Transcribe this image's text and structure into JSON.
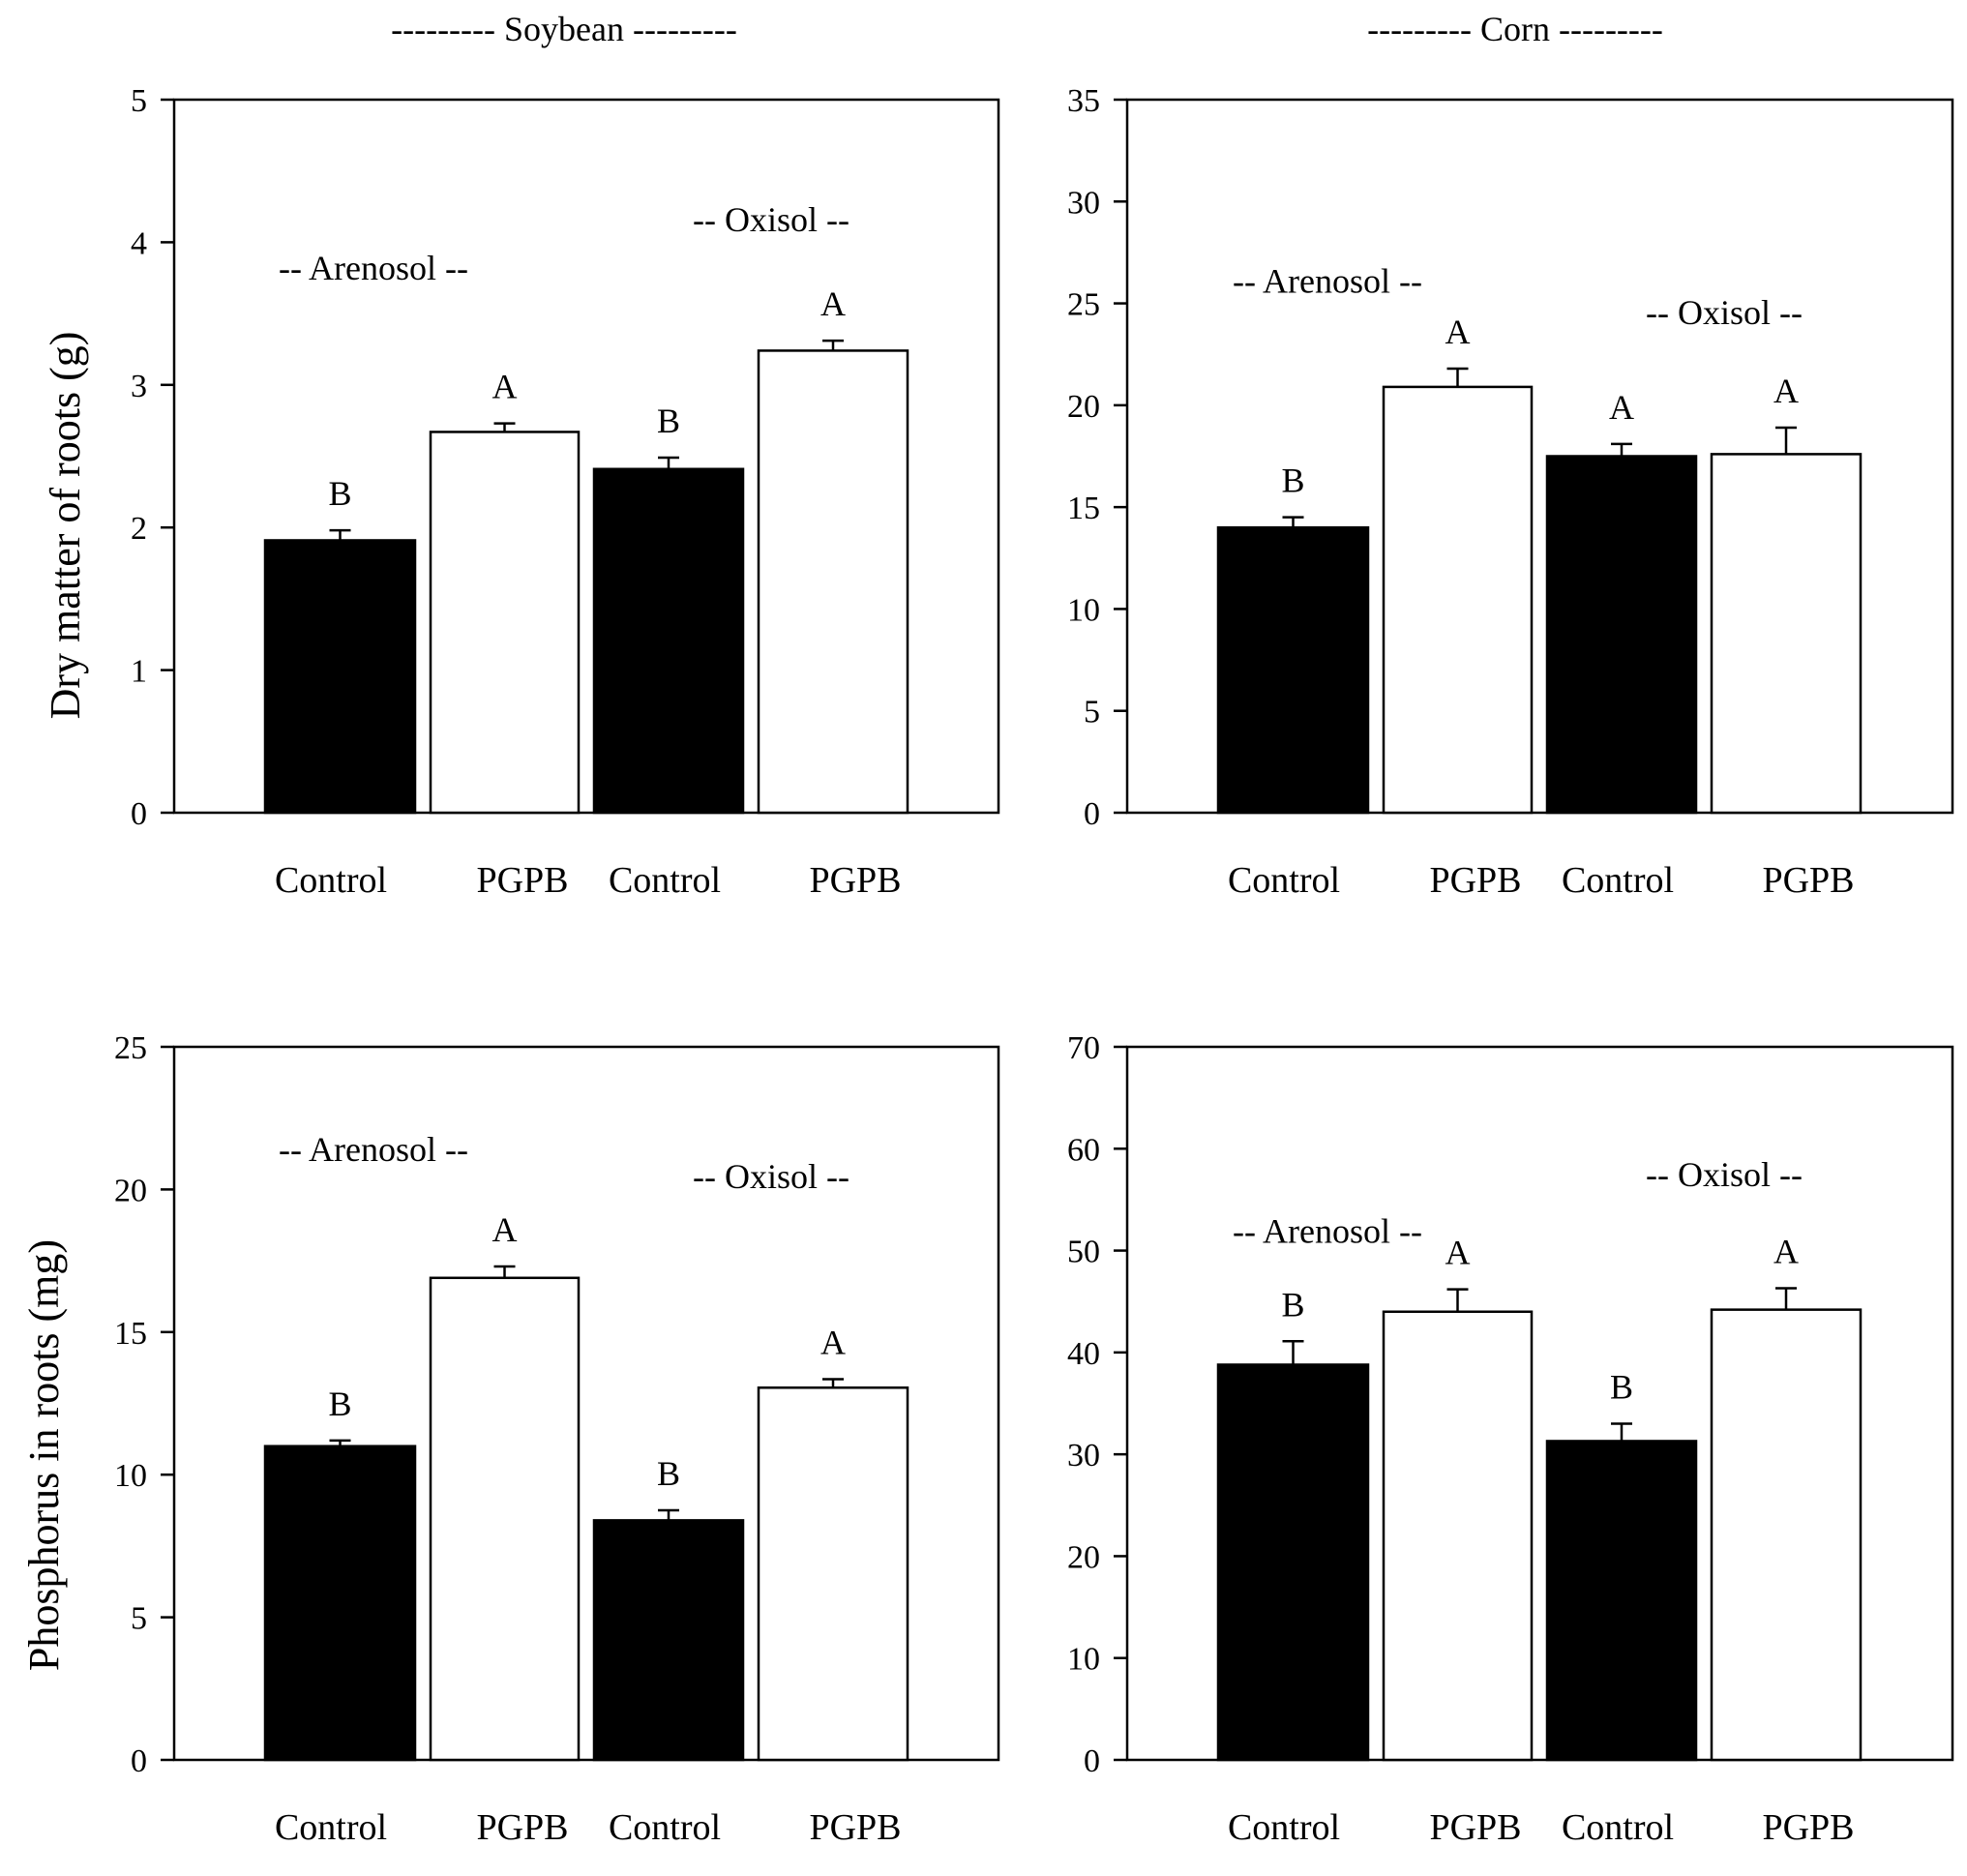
{
  "headers": {
    "left": "--------- Soybean ---------",
    "right": "--------- Corn ---------"
  },
  "y_axis_labels": {
    "top": "Dry matter of roots (g)",
    "bottom": "Phosphorus in roots (mg)"
  },
  "chart_data": [
    {
      "id": "soybean-dry-matter",
      "type": "bar",
      "crop": "Soybean",
      "ylabel": "Dry matter of roots (g)",
      "ylim": [
        0,
        5
      ],
      "yticks": [
        0,
        1,
        2,
        3,
        4,
        5
      ],
      "categories": [
        "Control",
        "PGPB",
        "Control",
        "PGPB"
      ],
      "soil_groups": [
        "-- Arenosol --",
        "-- Oxisol --"
      ],
      "values": [
        1.91,
        2.67,
        2.41,
        3.24
      ],
      "errors": [
        0.07,
        0.06,
        0.08,
        0.07
      ],
      "letters": [
        "B",
        "A",
        "B",
        "A"
      ],
      "fills": [
        "#000000",
        "#ffffff",
        "#000000",
        "#ffffff"
      ]
    },
    {
      "id": "corn-dry-matter",
      "type": "bar",
      "crop": "Corn",
      "ylabel": "",
      "ylim": [
        0,
        35
      ],
      "yticks": [
        0,
        5,
        10,
        15,
        20,
        25,
        30,
        35
      ],
      "categories": [
        "Control",
        "PGPB",
        "Control",
        "PGPB"
      ],
      "soil_groups": [
        "-- Arenosol --",
        "-- Oxisol --"
      ],
      "values": [
        14.0,
        20.9,
        17.5,
        17.6
      ],
      "errors": [
        0.5,
        0.9,
        0.6,
        1.3
      ],
      "letters": [
        "B",
        "A",
        "A",
        "A"
      ],
      "fills": [
        "#000000",
        "#ffffff",
        "#000000",
        "#ffffff"
      ]
    },
    {
      "id": "soybean-phosphorus",
      "type": "bar",
      "crop": "Soybean",
      "ylabel": "Phosphorus in roots (mg)",
      "ylim": [
        0,
        25
      ],
      "yticks": [
        0,
        5,
        10,
        15,
        20,
        25
      ],
      "categories": [
        "Control",
        "PGPB",
        "Control",
        "PGPB"
      ],
      "soil_groups": [
        "-- Arenosol --",
        "-- Oxisol --"
      ],
      "values": [
        11.0,
        16.9,
        8.4,
        13.05
      ],
      "errors": [
        0.2,
        0.4,
        0.35,
        0.3
      ],
      "letters": [
        "B",
        "A",
        "B",
        "A"
      ],
      "fills": [
        "#000000",
        "#ffffff",
        "#000000",
        "#ffffff"
      ]
    },
    {
      "id": "corn-phosphorus",
      "type": "bar",
      "crop": "Corn",
      "ylabel": "",
      "ylim": [
        0,
        70
      ],
      "yticks": [
        0,
        10,
        20,
        30,
        40,
        50,
        60,
        70
      ],
      "categories": [
        "Control",
        "PGPB",
        "Control",
        "PGPB"
      ],
      "soil_groups": [
        "-- Arenosol --",
        "-- Oxisol --"
      ],
      "values": [
        38.8,
        44.0,
        31.3,
        44.2
      ],
      "errors": [
        2.3,
        2.2,
        1.7,
        2.1
      ],
      "letters": [
        "B",
        "A",
        "B",
        "A"
      ],
      "fills": [
        "#000000",
        "#ffffff",
        "#000000",
        "#ffffff"
      ]
    }
  ]
}
